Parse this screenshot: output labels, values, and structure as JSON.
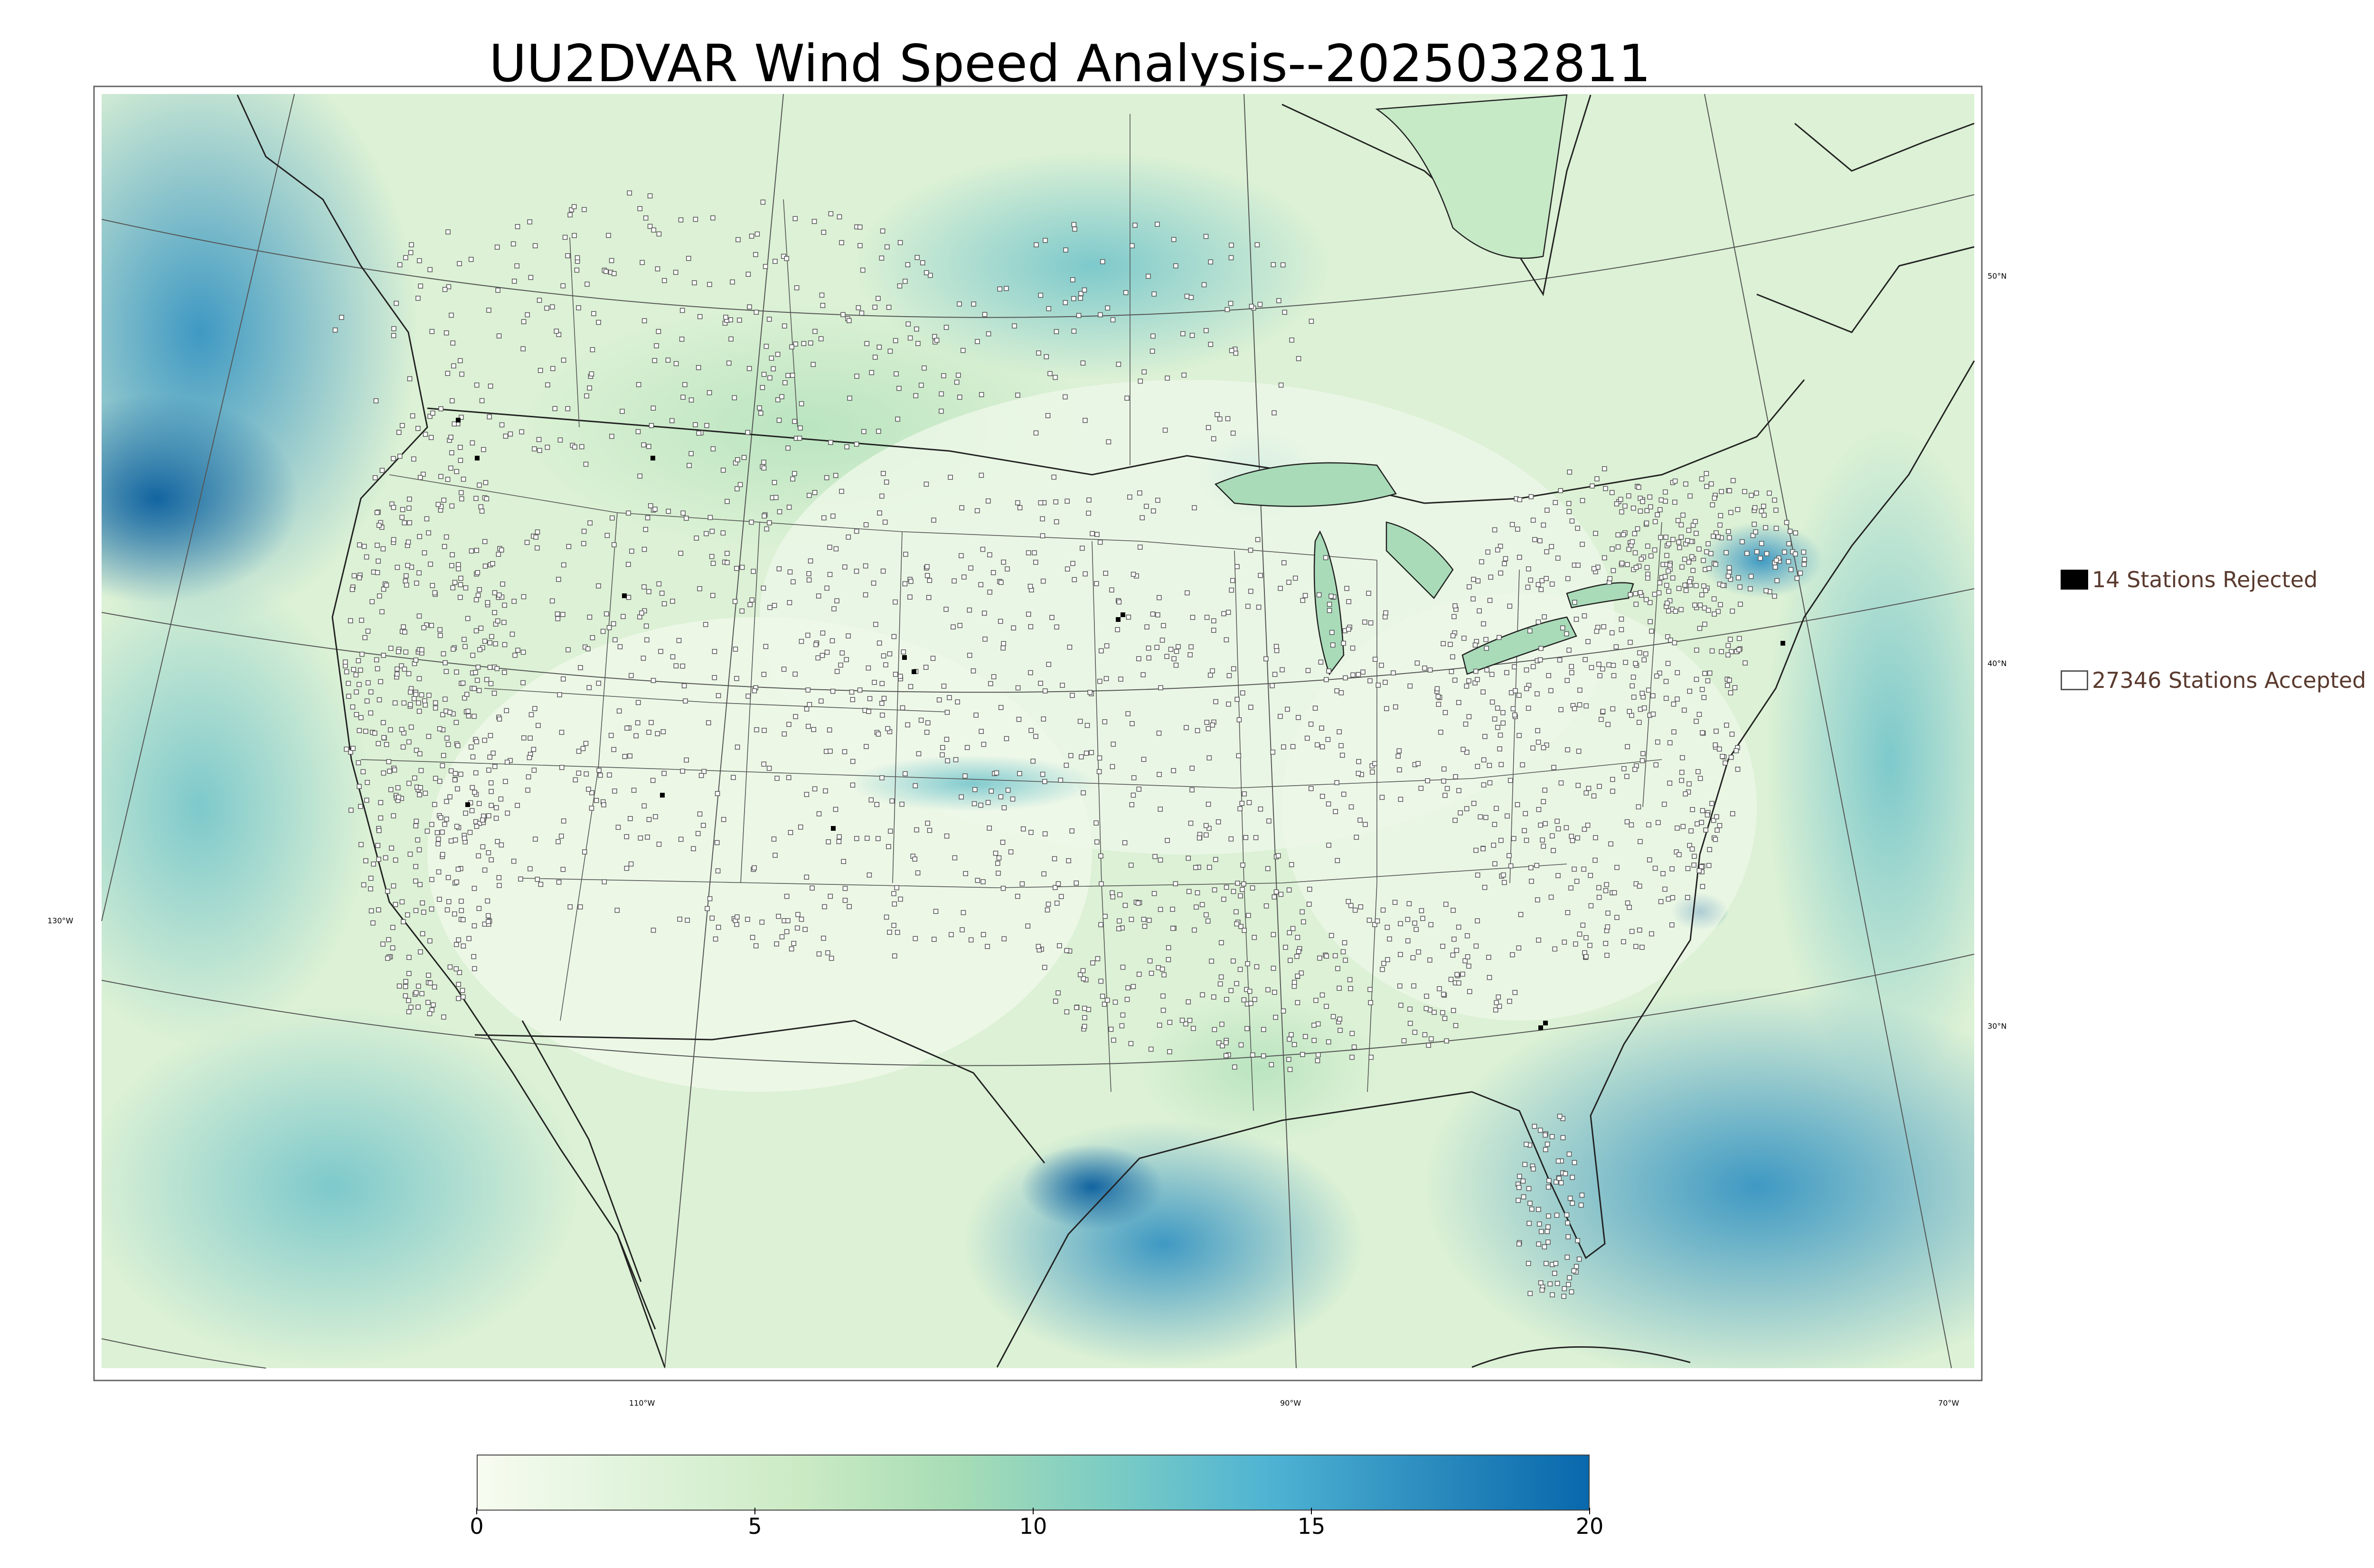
{
  "title": "UU2DVAR Wind Speed Analysis--2025032811",
  "latitude_labels": [
    "50°N",
    "40°N",
    "30°N"
  ],
  "longitude_labels": [
    "130°W",
    "110°W",
    "90°W",
    "70°W"
  ],
  "legend": {
    "rejected": {
      "label": "14 Stations Rejected",
      "count": 14,
      "color": "#000000"
    },
    "accepted": {
      "label": "27346 Stations Accepted",
      "count": 27346,
      "color": "#ffffff"
    }
  },
  "colorbar": {
    "min": 0,
    "max": 20,
    "ticks": [
      "0",
      "5",
      "10",
      "15",
      "20"
    ],
    "colors": [
      "#f7fcf0",
      "#e0f3db",
      "#ccebc5",
      "#a8ddb5",
      "#7bccc4",
      "#4eb3d3",
      "#2b8cbe",
      "#0868ac"
    ]
  },
  "colors": {
    "land_low": "#eef8e6",
    "land_mid": "#c9ebc4",
    "ocean_mid": "#7ccbc4",
    "ocean_high": "#2c8fc0",
    "ocean_max": "#0c66a6",
    "station_outline": "#555555",
    "boundary_line": "#333333"
  }
}
